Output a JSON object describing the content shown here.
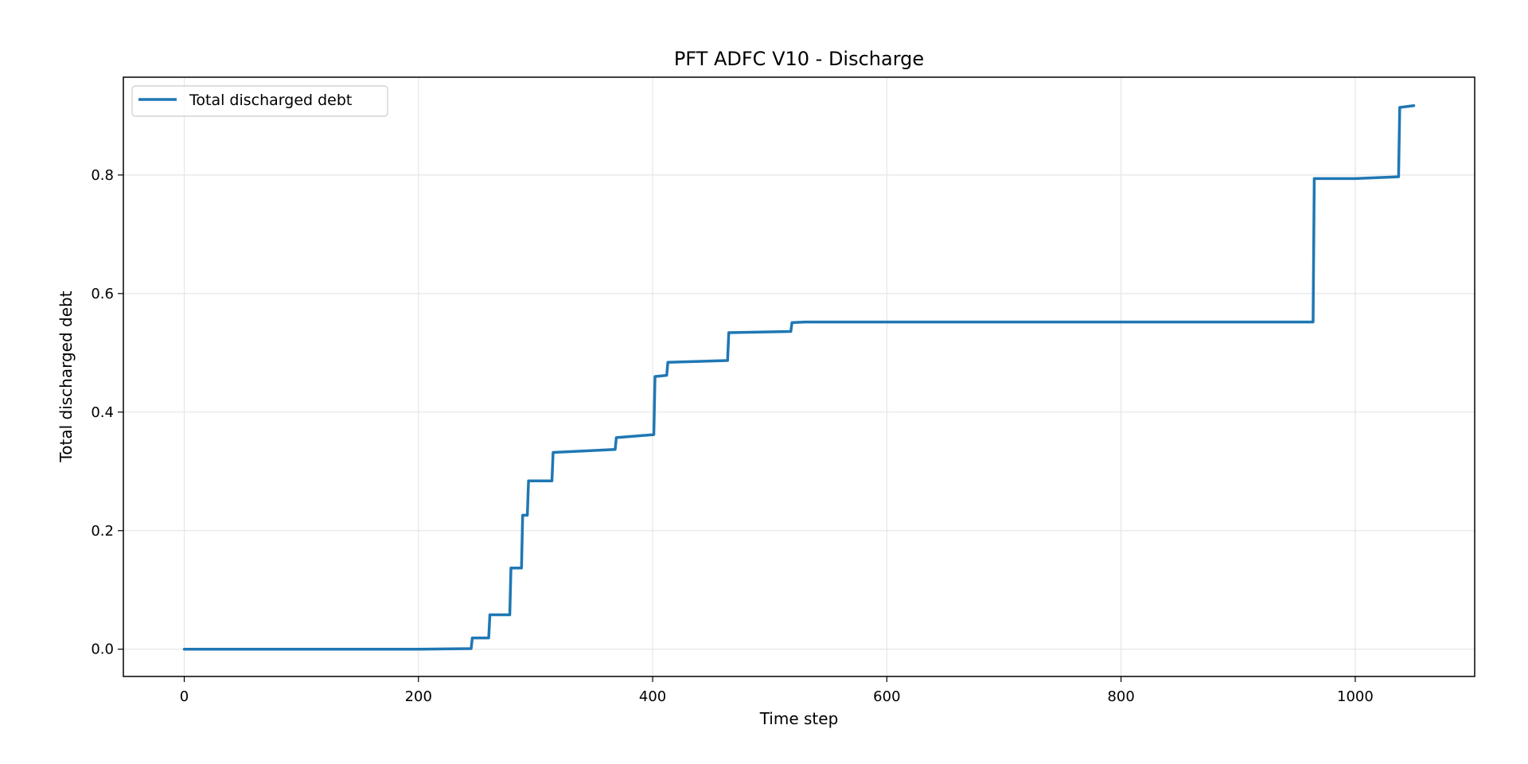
{
  "chart_data": {
    "type": "line",
    "title": "PFT ADFC V10 - Discharge",
    "xlabel": "Time step",
    "ylabel": "Total discharged debt",
    "xlim": [
      -52,
      1102
    ],
    "ylim": [
      -0.046,
      0.965
    ],
    "xticks": [
      0,
      200,
      400,
      600,
      800,
      1000
    ],
    "xtick_labels": [
      "0",
      "200",
      "400",
      "600",
      "800",
      "1000"
    ],
    "yticks": [
      0.0,
      0.2,
      0.4,
      0.6,
      0.8
    ],
    "ytick_labels": [
      "0.0",
      "0.2",
      "0.4",
      "0.6",
      "0.8"
    ],
    "grid": true,
    "legend_position": "top-left",
    "series": [
      {
        "name": "Total discharged debt",
        "color": "#1f77b4",
        "x": [
          0,
          200,
          245,
          246,
          260,
          261,
          278,
          279,
          288,
          289,
          293,
          294,
          314,
          315,
          368,
          369,
          401,
          402,
          412,
          413,
          464,
          465,
          518,
          519,
          530,
          964,
          965,
          1000,
          1037,
          1038,
          1050
        ],
        "y": [
          0.0,
          0.0,
          0.001,
          0.019,
          0.019,
          0.058,
          0.058,
          0.137,
          0.137,
          0.226,
          0.226,
          0.284,
          0.284,
          0.332,
          0.337,
          0.357,
          0.362,
          0.46,
          0.462,
          0.484,
          0.487,
          0.534,
          0.536,
          0.551,
          0.552,
          0.552,
          0.794,
          0.794,
          0.797,
          0.914,
          0.917
        ]
      }
    ]
  }
}
